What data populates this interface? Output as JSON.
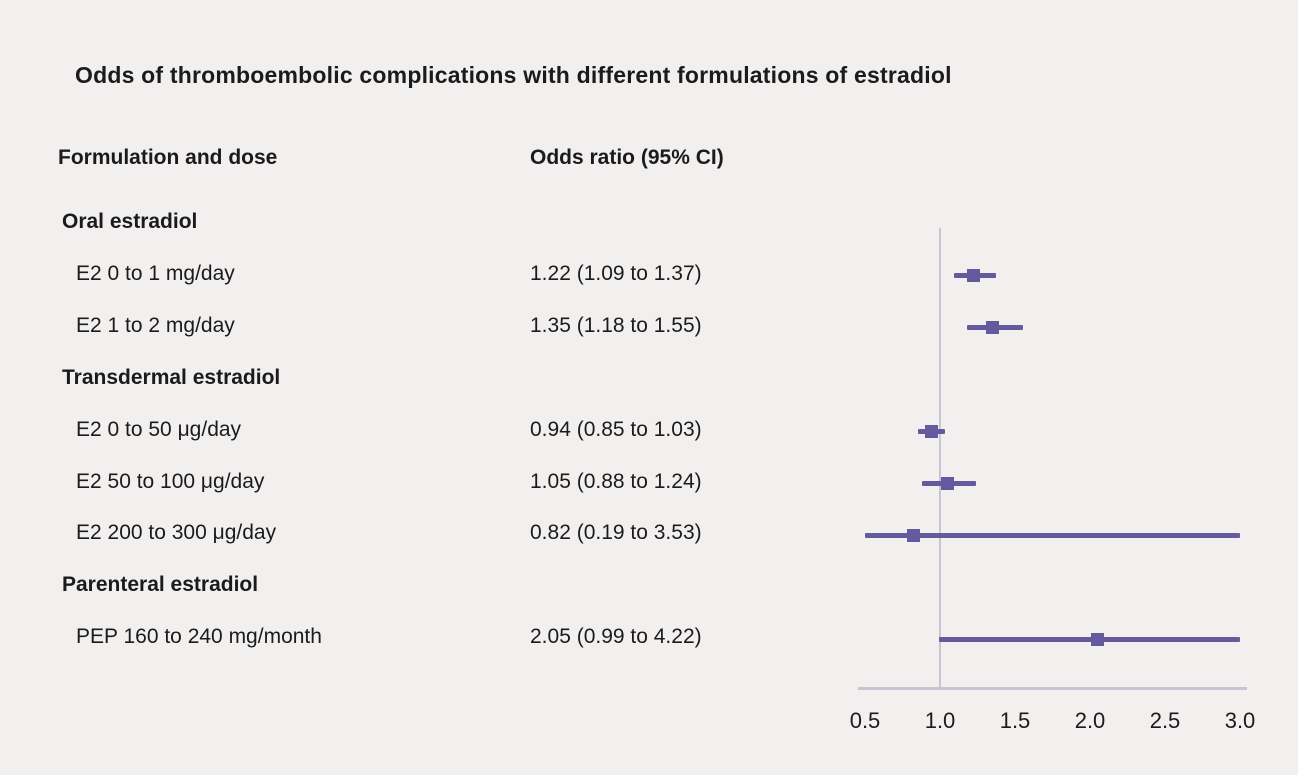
{
  "chart_data": {
    "type": "forest",
    "title": "Odds of thromboembolic complications with different formulations of estradiol",
    "columns": {
      "formulation": "Formulation and dose",
      "odds_ratio": "Odds ratio (95% CI)"
    },
    "xlim": [
      0.5,
      3.0
    ],
    "x_ticks": [
      0.5,
      1.0,
      1.5,
      2.0,
      2.5,
      3.0
    ],
    "tick_labels": [
      "0.5",
      "1.0",
      "1.5",
      "2.0",
      "2.5",
      "3.0"
    ],
    "reference_value": 1.0,
    "marker_color": "#665a9e",
    "axis_color": "#c7c5d4",
    "grid": false,
    "legend": "none",
    "rows": [
      {
        "type": "group",
        "label": "Oral estradiol"
      },
      {
        "type": "item",
        "label": "E2 0 to 1 mg/day",
        "or_text": "1.22 (1.09 to 1.37)",
        "or": 1.22,
        "lo": 1.09,
        "hi": 1.37
      },
      {
        "type": "item",
        "label": "E2 1 to 2 mg/day",
        "or_text": "1.35 (1.18 to 1.55)",
        "or": 1.35,
        "lo": 1.18,
        "hi": 1.55
      },
      {
        "type": "group",
        "label": "Transdermal estradiol"
      },
      {
        "type": "item",
        "label": "E2 0 to 50 μg/day",
        "or_text": "0.94 (0.85 to 1.03)",
        "or": 0.94,
        "lo": 0.85,
        "hi": 1.03
      },
      {
        "type": "item",
        "label": "E2 50 to 100 μg/day",
        "or_text": "1.05 (0.88 to 1.24)",
        "or": 1.05,
        "lo": 0.88,
        "hi": 1.24
      },
      {
        "type": "item",
        "label": "E2 200 to 300 μg/day",
        "or_text": "0.82 (0.19 to 3.53)",
        "or": 0.82,
        "lo": 0.19,
        "hi": 3.53
      },
      {
        "type": "group",
        "label": "Parenteral estradiol"
      },
      {
        "type": "item",
        "label": "PEP 160 to 240 mg/month",
        "or_text": "2.05 (0.99 to 4.22)",
        "or": 2.05,
        "lo": 0.99,
        "hi": 4.22
      }
    ]
  }
}
